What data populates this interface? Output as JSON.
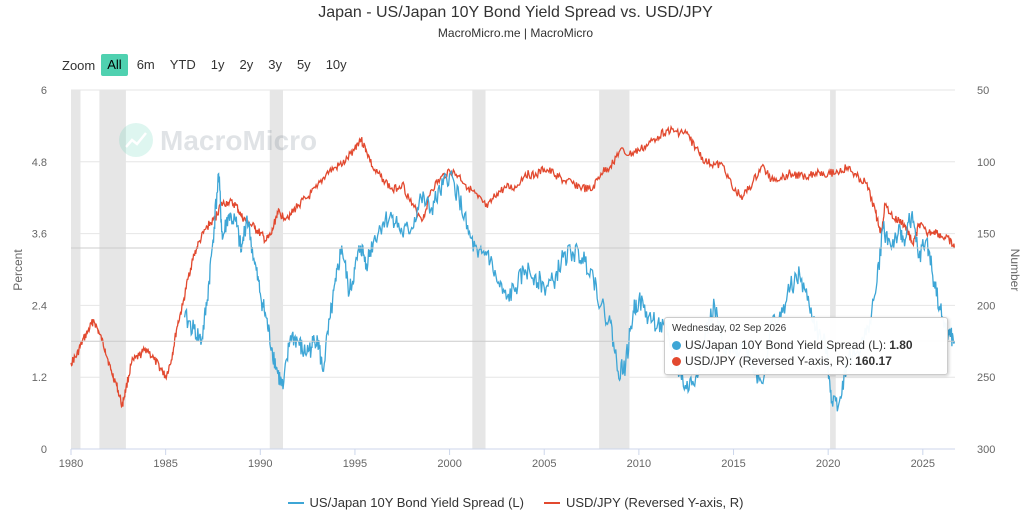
{
  "header": {
    "title": "Japan - US/Japan 10Y Bond Yield Spread vs. USD/JPY",
    "subtitle": "MacroMicro.me | MacroMicro"
  },
  "zoom": {
    "label": "Zoom",
    "buttons": [
      "All",
      "6m",
      "YTD",
      "1y",
      "2y",
      "3y",
      "5y",
      "10y"
    ],
    "active": "All"
  },
  "watermark": "MacroMicro",
  "tooltip": {
    "date": "Wednesday, 02 Sep 2026",
    "series1_label": "US/Japan 10Y Bond Yield Spread (L):",
    "series1_value": "1.80",
    "series2_label": "USD/JPY (Reversed Y-axis, R):",
    "series2_value": "160.17"
  },
  "colors": {
    "spread": "#3ea6d6",
    "usdjpy": "#e2492f",
    "recession": "#e6e6e6",
    "grid": "#e6e6e6",
    "active_zoom": "#4fd1b0"
  },
  "chart_data": {
    "type": "line",
    "x_range": [
      1980,
      2026.7
    ],
    "y_left": {
      "label": "Percent",
      "range": [
        0,
        6
      ],
      "ticks": [
        "0",
        "1.2",
        "2.4",
        "3.6",
        "4.8",
        "6"
      ]
    },
    "y_right": {
      "label": "Number",
      "range": [
        50,
        300
      ],
      "reversed": true,
      "ticks": [
        "50",
        "100",
        "150",
        "200",
        "250",
        "300"
      ]
    },
    "x_ticks": [
      "1980",
      "1985",
      "1990",
      "1995",
      "2000",
      "2005",
      "2010",
      "2015",
      "2020",
      "2025"
    ],
    "recessions": [
      [
        1980.0,
        1980.5
      ],
      [
        1981.5,
        1982.9
      ],
      [
        1990.5,
        1991.2
      ],
      [
        2001.2,
        2001.9
      ],
      [
        2007.9,
        2009.5
      ],
      [
        2020.1,
        2020.4
      ]
    ],
    "series": [
      {
        "name": "US/Japan 10Y Bond Yield Spread (L)",
        "axis": "left",
        "x": [
          1986.0,
          1986.5,
          1986.9,
          1987.2,
          1987.5,
          1987.8,
          1988.0,
          1988.3,
          1988.7,
          1989.0,
          1989.3,
          1989.7,
          1990.0,
          1990.3,
          1990.6,
          1990.9,
          1991.2,
          1991.6,
          1992.0,
          1992.3,
          1992.7,
          1993.0,
          1993.3,
          1993.7,
          1994.0,
          1994.3,
          1994.7,
          1995.0,
          1995.3,
          1995.6,
          1996.0,
          1996.5,
          1997.0,
          1997.5,
          1998.0,
          1998.5,
          1999.0,
          1999.5,
          2000.0,
          2000.5,
          2001.0,
          2001.5,
          2002.0,
          2002.5,
          2003.0,
          2003.5,
          2004.0,
          2004.5,
          2005.0,
          2005.5,
          2006.0,
          2006.5,
          2007.0,
          2007.5,
          2008.0,
          2008.5,
          2008.9,
          2009.3,
          2009.7,
          2010.0,
          2010.5,
          2011.0,
          2011.5,
          2012.0,
          2012.5,
          2013.0,
          2013.5,
          2014.0,
          2014.5,
          2015.0,
          2015.5,
          2016.0,
          2016.5,
          2017.0,
          2017.5,
          2018.0,
          2018.5,
          2019.0,
          2019.5,
          2019.9,
          2020.2,
          2020.6,
          2021.0,
          2021.5,
          2022.0,
          2022.5,
          2022.9,
          2023.3,
          2023.7,
          2024.0,
          2024.4,
          2024.8,
          2025.2,
          2025.6,
          2026.0,
          2026.4,
          2026.67
        ],
        "values": [
          2.2,
          2.0,
          1.8,
          2.5,
          3.5,
          4.6,
          3.5,
          3.9,
          3.8,
          3.3,
          3.9,
          3.1,
          2.6,
          2.2,
          1.7,
          1.3,
          1.0,
          1.9,
          1.8,
          1.6,
          1.7,
          1.9,
          1.3,
          2.2,
          2.8,
          3.4,
          2.6,
          3.0,
          3.4,
          3.1,
          3.5,
          3.8,
          3.9,
          3.6,
          3.7,
          4.2,
          4.0,
          4.3,
          4.6,
          4.2,
          3.6,
          3.2,
          3.3,
          2.8,
          2.5,
          2.7,
          3.0,
          2.9,
          2.7,
          2.8,
          3.2,
          3.3,
          3.2,
          3.0,
          2.4,
          2.1,
          1.3,
          1.4,
          2.3,
          2.5,
          2.2,
          2.1,
          1.9,
          1.4,
          1.0,
          1.2,
          1.9,
          2.4,
          1.6,
          1.6,
          1.8,
          1.4,
          1.1,
          2.1,
          2.2,
          2.7,
          2.9,
          2.4,
          1.9,
          1.7,
          0.8,
          0.8,
          1.5,
          1.6,
          1.9,
          2.6,
          3.7,
          3.4,
          3.6,
          3.5,
          3.9,
          3.2,
          3.5,
          2.8,
          2.2,
          1.9,
          1.8
        ]
      },
      {
        "name": "USD/JPY (Reversed Y-axis, R)",
        "axis": "right",
        "x": [
          1980.0,
          1980.3,
          1980.6,
          1980.9,
          1981.2,
          1981.5,
          1981.8,
          1982.1,
          1982.4,
          1982.7,
          1982.9,
          1983.2,
          1983.6,
          1984.0,
          1984.4,
          1984.8,
          1985.0,
          1985.3,
          1985.6,
          1985.9,
          1986.2,
          1986.5,
          1986.8,
          1987.2,
          1987.6,
          1987.9,
          1988.3,
          1988.7,
          1989.0,
          1989.3,
          1989.7,
          1990.0,
          1990.3,
          1990.6,
          1990.9,
          1991.2,
          1991.6,
          1992.0,
          1992.5,
          1993.0,
          1993.5,
          1994.0,
          1994.5,
          1995.0,
          1995.3,
          1995.6,
          1996.0,
          1996.5,
          1997.0,
          1997.5,
          1998.0,
          1998.6,
          1999.0,
          1999.5,
          2000.0,
          2000.5,
          2001.0,
          2001.5,
          2002.0,
          2002.5,
          2003.0,
          2003.5,
          2004.0,
          2004.5,
          2005.0,
          2005.5,
          2006.0,
          2006.5,
          2007.0,
          2007.5,
          2008.0,
          2008.5,
          2009.0,
          2009.5,
          2010.0,
          2010.5,
          2011.0,
          2011.5,
          2012.0,
          2012.5,
          2013.0,
          2013.5,
          2014.0,
          2014.5,
          2015.0,
          2015.5,
          2016.0,
          2016.5,
          2017.0,
          2017.5,
          2018.0,
          2018.5,
          2019.0,
          2019.5,
          2020.0,
          2020.5,
          2021.0,
          2021.5,
          2022.0,
          2022.5,
          2022.8,
          2023.0,
          2023.5,
          2023.9,
          2024.2,
          2024.5,
          2024.8,
          2025.2,
          2025.6,
          2026.0,
          2026.4,
          2026.67
        ],
        "values": [
          240,
          235,
          225,
          218,
          210,
          220,
          230,
          245,
          255,
          270,
          258,
          240,
          235,
          230,
          238,
          245,
          250,
          238,
          215,
          200,
          180,
          165,
          155,
          145,
          140,
          130,
          128,
          130,
          138,
          142,
          146,
          150,
          155,
          150,
          135,
          138,
          137,
          130,
          125,
          118,
          108,
          104,
          100,
          90,
          84,
          92,
          106,
          112,
          120,
          115,
          130,
          140,
          120,
          112,
          106,
          110,
          118,
          125,
          132,
          122,
          118,
          118,
          108,
          110,
          105,
          108,
          113,
          115,
          118,
          120,
          108,
          103,
          92,
          95,
          92,
          88,
          82,
          78,
          79,
          80,
          90,
          100,
          102,
          103,
          120,
          124,
          115,
          103,
          112,
          111,
          108,
          110,
          109,
          107,
          108,
          107,
          104,
          110,
          115,
          135,
          150,
          130,
          140,
          142,
          148,
          158,
          143,
          150,
          148,
          152,
          155,
          160
        ]
      }
    ]
  },
  "legend": {
    "spread_label": "US/Japan 10Y Bond Yield Spread (L)",
    "usdjpy_label": "USD/JPY (Reversed Y-axis, R)"
  }
}
